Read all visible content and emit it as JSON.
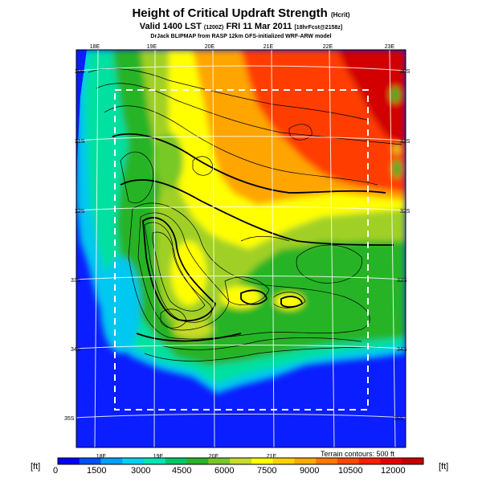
{
  "header": {
    "title": "Height of Critical Updraft Strength",
    "title_unit": "(Hcrit)",
    "valid_line": "Valid 1400 LST",
    "valid_code": "(1200Z)",
    "valid_date": "FRI 11 Mar 2011",
    "forecast_info": "[18hrFcst@2158z]",
    "model_line": "DrJack BLIPMAP from RASP 12km GFS-initialized WRF-ARW model"
  },
  "map": {
    "lon_labels_top": [
      "18E",
      "19E",
      "20E",
      "21E",
      "22E",
      "23E"
    ],
    "lon_labels_bottom": [
      "18E",
      "19E",
      "20E",
      "21E"
    ],
    "lat_labels_left": [
      "30S",
      "31S",
      "32S",
      "33S",
      "34S",
      "35S"
    ],
    "lat_labels_right": [
      "30S",
      "31S",
      "32S",
      "33S",
      "34S",
      "35S"
    ],
    "terrain_note": "Terrain contours: 500 ft"
  },
  "colorbar": {
    "unit_left": "[ft]",
    "unit_right": "[ft]",
    "tick_labels": [
      "0",
      "1500",
      "3000",
      "4500",
      "6000",
      "7500",
      "9000",
      "10500",
      "12000"
    ],
    "colors": [
      "#0000ff",
      "#0050ff",
      "#00a0ff",
      "#00d2f0",
      "#00e6b4",
      "#00c864",
      "#28b428",
      "#78c828",
      "#c8dc28",
      "#ffff00",
      "#ffd200",
      "#ffaa00",
      "#ff7800",
      "#ff4600",
      "#ff1e00",
      "#e60000",
      "#c80000"
    ]
  }
}
